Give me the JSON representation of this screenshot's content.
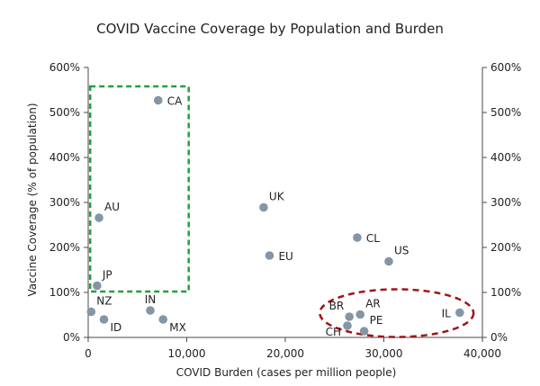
{
  "chart_data": {
    "type": "scatter",
    "title": "COVID Vaccine Coverage by Population and Burden",
    "xlabel": "COVID Burden (cases per million people)",
    "ylabel": "Vaccine Coverage (% of population)",
    "xlim": [
      0,
      40000
    ],
    "ylim": [
      0,
      600
    ],
    "x_ticks": [
      0,
      10000,
      20000,
      30000,
      40000
    ],
    "x_tick_labels": [
      "0",
      "10,000",
      "20,000",
      "30,000",
      "40,000"
    ],
    "y_ticks": [
      0,
      100,
      200,
      300,
      400,
      500,
      600
    ],
    "y_tick_labels": [
      "0%",
      "100%",
      "200%",
      "300%",
      "400%",
      "500%",
      "600%"
    ],
    "grid": false,
    "marker_color": "#8496a6",
    "points": [
      {
        "label": "CA",
        "x": 7100,
        "y": 527,
        "label_pos": "right"
      },
      {
        "label": "AU",
        "x": 1100,
        "y": 266,
        "label_pos": "above-right"
      },
      {
        "label": "JP",
        "x": 900,
        "y": 115,
        "label_pos": "above-right"
      },
      {
        "label": "NZ",
        "x": 300,
        "y": 57,
        "label_pos": "above-right"
      },
      {
        "label": "ID",
        "x": 1600,
        "y": 40,
        "label_pos": "below-right"
      },
      {
        "label": "IN",
        "x": 6300,
        "y": 60,
        "label_pos": "above"
      },
      {
        "label": "MX",
        "x": 7600,
        "y": 40,
        "label_pos": "below-right"
      },
      {
        "label": "UK",
        "x": 17800,
        "y": 289,
        "label_pos": "above-right"
      },
      {
        "label": "EU",
        "x": 18400,
        "y": 182,
        "label_pos": "right"
      },
      {
        "label": "CL",
        "x": 27300,
        "y": 222,
        "label_pos": "right"
      },
      {
        "label": "US",
        "x": 30500,
        "y": 169,
        "label_pos": "above-right"
      },
      {
        "label": "BR",
        "x": 26500,
        "y": 46,
        "label_pos": "above-left"
      },
      {
        "label": "AR",
        "x": 27600,
        "y": 51,
        "label_pos": "above-right"
      },
      {
        "label": "CH",
        "x": 26300,
        "y": 26,
        "label_pos": "below-left"
      },
      {
        "label": "PE",
        "x": 28000,
        "y": 14,
        "label_pos": "above-right"
      },
      {
        "label": "IL",
        "x": 37700,
        "y": 55,
        "label_pos": "left"
      }
    ],
    "annotations": [
      {
        "type": "rect",
        "style": "dashed",
        "color": "#22a03c",
        "x_range": [
          200,
          10200
        ],
        "y_range": [
          102,
          558
        ],
        "note": "green dashed box"
      },
      {
        "type": "ellipse",
        "style": "dashed",
        "color": "#a01418",
        "cx": 31300,
        "cy": 54,
        "rx": 7800,
        "ry": 53,
        "note": "red dashed ellipse"
      }
    ]
  }
}
